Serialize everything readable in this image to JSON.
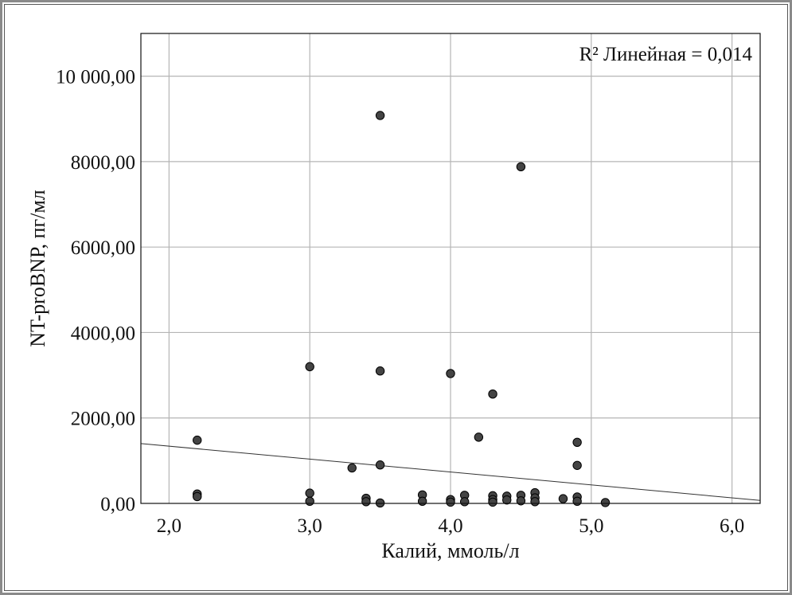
{
  "chart_data": {
    "type": "scatter",
    "xlabel": "Калий, ммоль/л",
    "ylabel": "NT-proBNP, пг/мл",
    "annotation": "R² Линейная = 0,014",
    "xlim": [
      1.8,
      6.2
    ],
    "ylim": [
      0,
      11000
    ],
    "x_ticks": [
      2.0,
      3.0,
      4.0,
      5.0,
      6.0
    ],
    "x_tick_labels": [
      "2,0",
      "3,0",
      "4,0",
      "5,0",
      "6,0"
    ],
    "y_ticks": [
      0,
      2000,
      4000,
      6000,
      8000,
      10000
    ],
    "y_tick_labels": [
      "0,00",
      "2000,00",
      "4000,00",
      "6000,00",
      "8000,00",
      "10 000,00"
    ],
    "grid": true,
    "fit_line": {
      "x": [
        1.8,
        6.2
      ],
      "y": [
        1400,
        70
      ]
    },
    "points": [
      {
        "x": 2.2,
        "y": 1480
      },
      {
        "x": 2.2,
        "y": 220
      },
      {
        "x": 2.2,
        "y": 160
      },
      {
        "x": 3.0,
        "y": 3200
      },
      {
        "x": 3.0,
        "y": 240
      },
      {
        "x": 3.0,
        "y": 50
      },
      {
        "x": 3.3,
        "y": 830
      },
      {
        "x": 3.4,
        "y": 120
      },
      {
        "x": 3.4,
        "y": 40
      },
      {
        "x": 3.5,
        "y": 9080
      },
      {
        "x": 3.5,
        "y": 3100
      },
      {
        "x": 3.5,
        "y": 900
      },
      {
        "x": 3.5,
        "y": 10
      },
      {
        "x": 3.8,
        "y": 200
      },
      {
        "x": 3.8,
        "y": 50
      },
      {
        "x": 4.0,
        "y": 3040
      },
      {
        "x": 4.0,
        "y": 90
      },
      {
        "x": 4.0,
        "y": 30
      },
      {
        "x": 4.1,
        "y": 190
      },
      {
        "x": 4.1,
        "y": 40
      },
      {
        "x": 4.2,
        "y": 1550
      },
      {
        "x": 4.3,
        "y": 2560
      },
      {
        "x": 4.3,
        "y": 180
      },
      {
        "x": 4.3,
        "y": 90
      },
      {
        "x": 4.3,
        "y": 30
      },
      {
        "x": 4.4,
        "y": 170
      },
      {
        "x": 4.4,
        "y": 80
      },
      {
        "x": 4.5,
        "y": 7880
      },
      {
        "x": 4.5,
        "y": 190
      },
      {
        "x": 4.5,
        "y": 60
      },
      {
        "x": 4.6,
        "y": 250
      },
      {
        "x": 4.6,
        "y": 130
      },
      {
        "x": 4.6,
        "y": 40
      },
      {
        "x": 4.8,
        "y": 110
      },
      {
        "x": 4.9,
        "y": 1430
      },
      {
        "x": 4.9,
        "y": 890
      },
      {
        "x": 4.9,
        "y": 150
      },
      {
        "x": 4.9,
        "y": 50
      },
      {
        "x": 5.1,
        "y": 20
      }
    ]
  }
}
